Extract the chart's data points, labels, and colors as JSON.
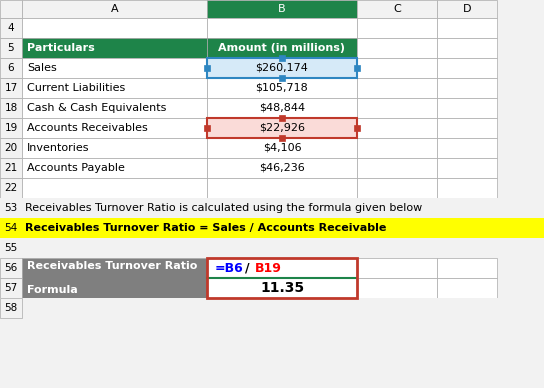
{
  "col_A_header": "Particulars",
  "col_B_header": "Amount (in millions)",
  "data_rows": [
    {
      "row": "6",
      "A": "Sales",
      "B": "$260,174"
    },
    {
      "row": "17",
      "A": "Current Liabilities",
      "B": "$105,718"
    },
    {
      "row": "18",
      "A": "Cash & Cash Equivalents",
      "B": "$48,844"
    },
    {
      "row": "19",
      "A": "Accounts Receivables",
      "B": "$22,926"
    },
    {
      "row": "20",
      "A": "Inventories",
      "B": "$4,106"
    },
    {
      "row": "21",
      "A": "Accounts Payable",
      "B": "$46,236"
    }
  ],
  "text_row53": "Receivables Turnover Ratio is calculated using the formula given below",
  "text_row54": "Receivables Turnover Ratio = Sales / Accounts Receivable",
  "result_value": "11.35",
  "header_green": "#1e8449",
  "header_text_white": "#ffffff",
  "highlight_blue_bg": "#d6eaf8",
  "highlight_blue_border": "#2e86c1",
  "highlight_pink_bg": "#fadbd8",
  "highlight_pink_border": "#c0392b",
  "yellow_bg": "#ffff00",
  "dark_gray_bg": "#7f7f7f",
  "dark_gray_text": "#ffffff",
  "red_border": "#c0392b",
  "green_line": "#1e8449",
  "grid_color": "#aaaaaa",
  "bg_color": "#f2f2f2",
  "white": "#ffffff",
  "black": "#000000"
}
